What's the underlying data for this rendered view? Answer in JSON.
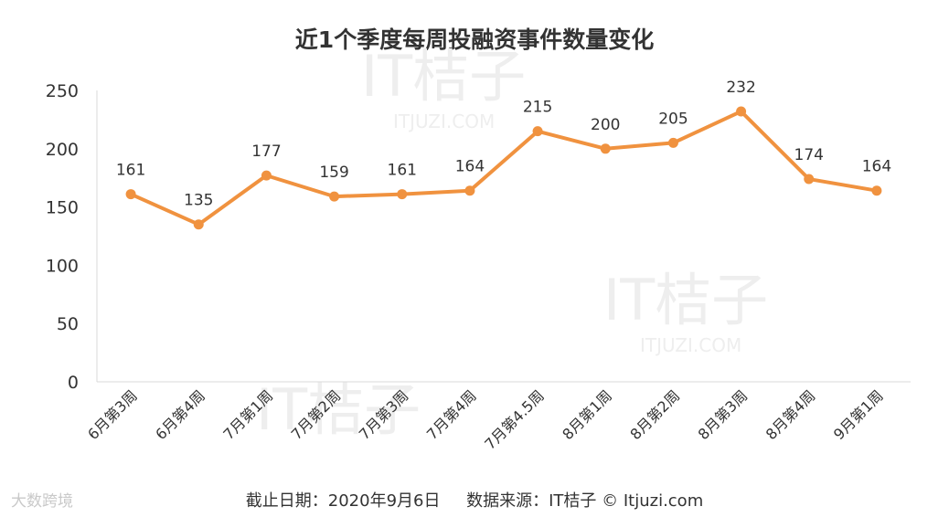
{
  "chart_data": {
    "type": "line",
    "title": "近1个季度每周投融资事件数量变化",
    "categories": [
      "6月第3周",
      "6月第4周",
      "7月第1周",
      "7月第2周",
      "7月第3周",
      "7月第4周",
      "7月第4.5周",
      "8月第1周",
      "8月第2周",
      "8月第3周",
      "8月第4周",
      "9月第1周"
    ],
    "values": [
      161,
      135,
      177,
      159,
      161,
      164,
      215,
      200,
      205,
      232,
      174,
      164
    ],
    "yticks": [
      0,
      50,
      100,
      150,
      200,
      250
    ],
    "ylim": [
      0,
      250
    ],
    "grid": false,
    "data_labels": true,
    "colors": {
      "line": "#F0923F"
    }
  },
  "footer": {
    "date_text": "截止日期：2020年9月6日",
    "source_text": "数据来源：IT桔子 © Itjuzi.com"
  },
  "branding": {
    "corner_logo": "大数跨境",
    "watermark": "IT桔子",
    "watermark_url": "ITJUZI.COM"
  }
}
